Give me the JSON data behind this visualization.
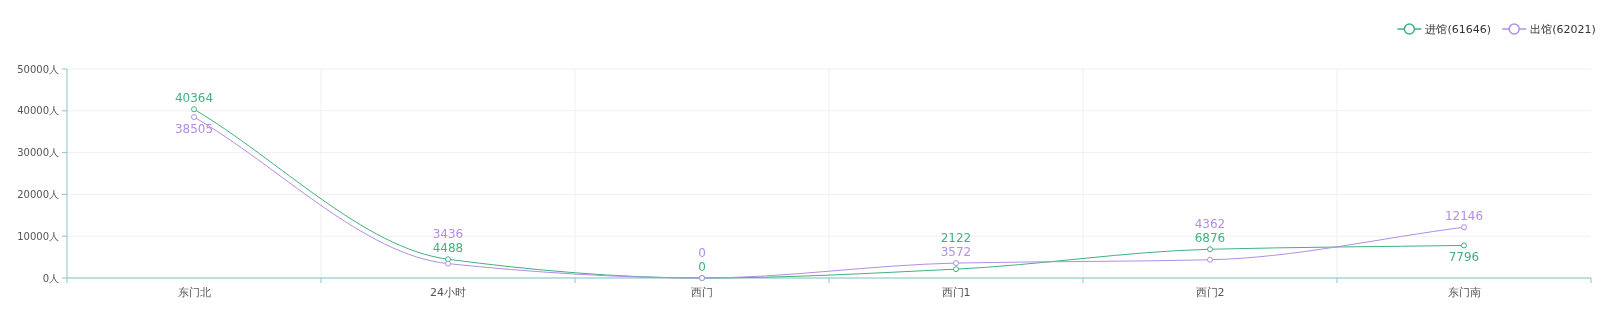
{
  "chart_data": {
    "type": "line",
    "categories": [
      "东门北",
      "24小时",
      "西门",
      "西门1",
      "西门2",
      "东门南"
    ],
    "series": [
      {
        "name": "进馆(61646)",
        "color": "#3fb27f",
        "values": [
          40364,
          4488,
          0,
          2122,
          6876,
          7796
        ]
      },
      {
        "name": "出馆(62021)",
        "color": "#b18ee8",
        "values": [
          38505,
          3436,
          0,
          3572,
          4362,
          12146
        ]
      }
    ],
    "ylim": [
      0,
      50000
    ],
    "yticks": [
      {
        "value": 0,
        "label": "0人"
      },
      {
        "value": 10000,
        "label": "10000人"
      },
      {
        "value": 20000,
        "label": "20000人"
      },
      {
        "value": 30000,
        "label": "30000人"
      },
      {
        "value": 40000,
        "label": "40000人"
      },
      {
        "value": 50000,
        "label": "50000人"
      }
    ],
    "grid": true,
    "legend": "top right",
    "marker": "circle",
    "line_style": "solid",
    "data_labels": true
  }
}
